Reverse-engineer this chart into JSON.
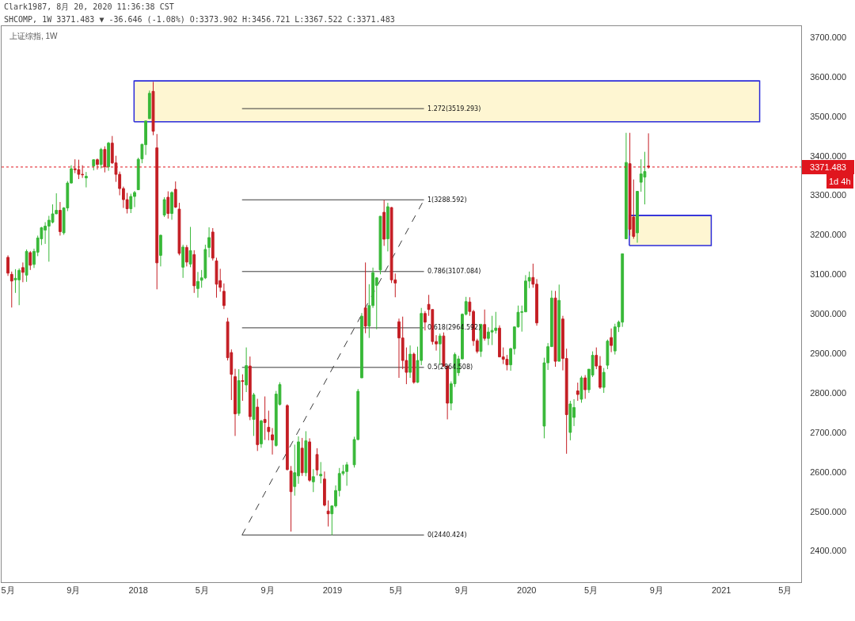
{
  "chart_data": {
    "type": "candlestick",
    "title": "Clark1987, 8月 20, 2020 11:36:38 CST",
    "subtitle": "SHCOMP, 1W 3371.483 ▼ -36.646 (-1.08%) O:3373.902 H:3456.721 L:3367.522 C:3371.483",
    "annotations": [
      "上证综指, 1W",
      "1d 4h"
    ],
    "x": [
      "2017-05-01",
      "2017-05-08",
      "2017-05-15",
      "2017-05-22",
      "2017-05-29",
      "2017-06-05",
      "2017-06-12",
      "2017-06-19",
      "2017-06-26",
      "2017-07-03",
      "2017-07-10",
      "2017-07-17",
      "2017-07-24",
      "2017-07-31",
      "2017-08-07",
      "2017-08-14",
      "2017-08-21",
      "2017-08-28",
      "2017-09-04",
      "2017-09-11",
      "2017-09-18",
      "2017-09-25",
      "2017-10-09",
      "2017-10-16",
      "2017-10-23",
      "2017-10-30",
      "2017-11-06",
      "2017-11-13",
      "2017-11-20",
      "2017-11-27",
      "2017-12-04",
      "2017-12-11",
      "2017-12-18",
      "2017-12-25",
      "2018-01-01",
      "2018-01-08",
      "2018-01-15",
      "2018-01-22",
      "2018-01-29",
      "2018-02-05",
      "2018-02-12",
      "2018-02-19",
      "2018-02-26",
      "2018-03-05",
      "2018-03-12",
      "2018-03-19",
      "2018-03-26",
      "2018-04-02",
      "2018-04-09",
      "2018-04-16",
      "2018-04-23",
      "2018-04-30",
      "2018-05-07",
      "2018-05-14",
      "2018-05-21",
      "2018-05-28",
      "2018-06-04",
      "2018-06-11",
      "2018-06-18",
      "2018-06-25",
      "2018-07-02",
      "2018-07-09",
      "2018-07-16",
      "2018-07-23",
      "2018-07-30",
      "2018-08-06",
      "2018-08-13",
      "2018-08-20",
      "2018-08-27",
      "2018-09-03",
      "2018-09-10",
      "2018-09-17",
      "2018-09-24",
      "2018-10-08",
      "2018-10-15",
      "2018-10-22",
      "2018-10-29",
      "2018-11-05",
      "2018-11-12",
      "2018-11-19",
      "2018-11-26",
      "2018-12-03",
      "2018-12-10",
      "2018-12-17",
      "2018-12-24",
      "2018-12-31",
      "2019-01-07",
      "2019-01-14",
      "2019-01-21",
      "2019-01-28",
      "2019-02-11",
      "2019-02-18",
      "2019-02-25",
      "2019-03-04",
      "2019-03-11",
      "2019-03-18",
      "2019-03-25",
      "2019-04-01",
      "2019-04-08",
      "2019-04-15",
      "2019-04-22",
      "2019-04-29",
      "2019-05-06",
      "2019-05-13",
      "2019-05-20",
      "2019-05-27",
      "2019-06-03",
      "2019-06-10",
      "2019-06-17",
      "2019-06-24",
      "2019-07-01",
      "2019-07-08",
      "2019-07-15",
      "2019-07-22",
      "2019-07-29",
      "2019-08-05",
      "2019-08-12",
      "2019-08-19",
      "2019-08-26",
      "2019-09-02",
      "2019-09-09",
      "2019-09-16",
      "2019-09-23",
      "2019-09-30",
      "2019-10-07",
      "2019-10-14",
      "2019-10-21",
      "2019-10-28",
      "2019-11-04",
      "2019-11-11",
      "2019-11-18",
      "2019-11-25",
      "2019-12-02",
      "2019-12-09",
      "2019-12-16",
      "2019-12-23",
      "2019-12-30",
      "2020-01-06",
      "2020-01-13",
      "2020-01-20",
      "2020-02-03",
      "2020-02-10",
      "2020-02-17",
      "2020-02-24",
      "2020-03-02",
      "2020-03-09",
      "2020-03-16",
      "2020-03-23",
      "2020-03-30",
      "2020-04-06",
      "2020-04-13",
      "2020-04-20",
      "2020-04-27",
      "2020-05-04",
      "2020-05-11",
      "2020-05-18",
      "2020-05-25",
      "2020-06-01",
      "2020-06-08",
      "2020-06-15",
      "2020-06-22",
      "2020-06-29",
      "2020-07-06",
      "2020-07-13",
      "2020-07-20",
      "2020-07-27",
      "2020-08-03",
      "2020-08-10",
      "2020-08-17"
    ],
    "ohlc": [
      [
        3143,
        3148,
        3096,
        3103
      ],
      [
        3100,
        3107,
        3016,
        3083
      ],
      [
        3086,
        3113,
        3053,
        3090
      ],
      [
        3086,
        3115,
        3022,
        3110
      ],
      [
        3117,
        3130,
        3080,
        3105
      ],
      [
        3098,
        3163,
        3081,
        3158
      ],
      [
        3155,
        3159,
        3111,
        3123
      ],
      [
        3125,
        3165,
        3116,
        3158
      ],
      [
        3156,
        3198,
        3146,
        3192
      ],
      [
        3190,
        3220,
        3174,
        3218
      ],
      [
        3212,
        3232,
        3177,
        3222
      ],
      [
        3222,
        3248,
        3132,
        3237
      ],
      [
        3232,
        3277,
        3229,
        3253
      ],
      [
        3253,
        3305,
        3253,
        3262
      ],
      [
        3262,
        3283,
        3198,
        3208
      ],
      [
        3205,
        3270,
        3200,
        3268
      ],
      [
        3268,
        3336,
        3260,
        3331
      ],
      [
        3331,
        3376,
        3330,
        3367
      ],
      [
        3367,
        3391,
        3356,
        3365
      ],
      [
        3365,
        3390,
        3341,
        3353
      ],
      [
        3353,
        3376,
        3344,
        3352
      ],
      [
        3344,
        3359,
        3320,
        3348
      ],
      [
        3374,
        3391,
        3363,
        3390
      ],
      [
        3390,
        3393,
        3365,
        3378
      ],
      [
        3378,
        3420,
        3368,
        3416
      ],
      [
        3416,
        3424,
        3358,
        3372
      ],
      [
        3372,
        3435,
        3362,
        3432
      ],
      [
        3432,
        3450,
        3379,
        3382
      ],
      [
        3382,
        3400,
        3334,
        3353
      ],
      [
        3353,
        3360,
        3300,
        3317
      ],
      [
        3317,
        3322,
        3268,
        3289
      ],
      [
        3289,
        3306,
        3254,
        3266
      ],
      [
        3266,
        3304,
        3255,
        3297
      ],
      [
        3297,
        3311,
        3270,
        3307
      ],
      [
        3314,
        3395,
        3314,
        3391
      ],
      [
        3392,
        3430,
        3381,
        3429
      ],
      [
        3428,
        3488,
        3402,
        3488
      ],
      [
        3494,
        3565,
        3493,
        3558
      ],
      [
        3563,
        3587,
        3452,
        3462
      ],
      [
        3420,
        3455,
        3062,
        3129
      ],
      [
        3148,
        3200,
        3120,
        3199
      ],
      [
        3250,
        3295,
        3245,
        3289
      ],
      [
        3295,
        3310,
        3241,
        3254
      ],
      [
        3254,
        3310,
        3238,
        3307
      ],
      [
        3315,
        3335,
        3268,
        3270
      ],
      [
        3265,
        3281,
        3148,
        3153
      ],
      [
        3118,
        3175,
        3091,
        3169
      ],
      [
        3168,
        3174,
        3120,
        3131
      ],
      [
        3126,
        3220,
        3118,
        3160
      ],
      [
        3150,
        3161,
        3053,
        3071
      ],
      [
        3064,
        3106,
        3041,
        3082
      ],
      [
        3085,
        3111,
        3066,
        3091
      ],
      [
        3091,
        3175,
        3088,
        3163
      ],
      [
        3168,
        3219,
        3143,
        3193
      ],
      [
        3207,
        3217,
        3135,
        3141
      ],
      [
        3134,
        3142,
        3041,
        3075
      ],
      [
        3084,
        3114,
        3056,
        3067
      ],
      [
        3057,
        3077,
        3012,
        3021
      ],
      [
        2980,
        2990,
        2882,
        2889
      ],
      [
        2902,
        2910,
        2782,
        2847
      ],
      [
        2841,
        2861,
        2691,
        2747
      ],
      [
        2748,
        2860,
        2742,
        2831
      ],
      [
        2831,
        2847,
        2780,
        2829
      ],
      [
        2820,
        2915,
        2802,
        2869
      ],
      [
        2868,
        2892,
        2731,
        2740
      ],
      [
        2733,
        2800,
        2691,
        2795
      ],
      [
        2764,
        2785,
        2653,
        2669
      ],
      [
        2671,
        2732,
        2661,
        2729
      ],
      [
        2733,
        2791,
        2681,
        2725
      ],
      [
        2713,
        2755,
        2680,
        2702
      ],
      [
        2694,
        2711,
        2644,
        2681
      ],
      [
        2667,
        2805,
        2664,
        2797
      ],
      [
        2771,
        2827,
        2768,
        2821
      ],
      [
        2768,
        2771,
        2604,
        2606
      ],
      [
        2602,
        2615,
        2449,
        2550
      ],
      [
        2563,
        2669,
        2540,
        2598
      ],
      [
        2590,
        2690,
        2570,
        2676
      ],
      [
        2660,
        2686,
        2590,
        2598
      ],
      [
        2598,
        2703,
        2589,
        2679
      ],
      [
        2676,
        2685,
        2575,
        2579
      ],
      [
        2575,
        2607,
        2549,
        2588
      ],
      [
        2644,
        2660,
        2591,
        2605
      ],
      [
        2590,
        2625,
        2571,
        2594
      ],
      [
        2582,
        2601,
        2513,
        2516
      ],
      [
        2501,
        2528,
        2462,
        2494
      ],
      [
        2494,
        2515,
        2440,
        2514
      ],
      [
        2514,
        2566,
        2510,
        2553
      ],
      [
        2553,
        2610,
        2538,
        2596
      ],
      [
        2596,
        2618,
        2591,
        2601
      ],
      [
        2601,
        2625,
        2565,
        2618
      ],
      [
        2618,
        2689,
        2611,
        2682
      ],
      [
        2682,
        2810,
        2680,
        2804
      ],
      [
        2838,
        3002,
        2838,
        2994
      ],
      [
        3015,
        3130,
        2951,
        2969
      ],
      [
        2969,
        3075,
        2939,
        3021
      ],
      [
        3021,
        3117,
        3015,
        3104
      ],
      [
        3072,
        3093,
        2961,
        3091
      ],
      [
        3111,
        3247,
        3100,
        3247
      ],
      [
        3257,
        3288,
        3172,
        3189
      ],
      [
        3190,
        3281,
        3158,
        3271
      ],
      [
        3269,
        3270,
        3078,
        3086
      ],
      [
        3086,
        3102,
        3042,
        3078
      ],
      [
        2980,
        2988,
        2838,
        2939
      ],
      [
        2939,
        2993,
        2860,
        2882
      ],
      [
        2882,
        2915,
        2822,
        2852
      ],
      [
        2852,
        2920,
        2838,
        2898
      ],
      [
        2898,
        2902,
        2823,
        2827
      ],
      [
        2827,
        2917,
        2825,
        2882
      ],
      [
        2882,
        3015,
        2870,
        3001
      ],
      [
        3001,
        3007,
        2958,
        2979
      ],
      [
        3024,
        3048,
        2995,
        3011
      ],
      [
        3011,
        3011,
        2922,
        2930
      ],
      [
        2930,
        2946,
        2907,
        2924
      ],
      [
        2924,
        2950,
        2871,
        2944
      ],
      [
        2944,
        2953,
        2866,
        2868
      ],
      [
        2868,
        2868,
        2733,
        2774
      ],
      [
        2774,
        2829,
        2756,
        2823
      ],
      [
        2823,
        2902,
        2815,
        2897
      ],
      [
        2851,
        2894,
        2843,
        2886
      ],
      [
        2886,
        3001,
        2885,
        2999
      ],
      [
        2999,
        3043,
        2996,
        3031
      ],
      [
        3030,
        3042,
        2995,
        3006
      ],
      [
        3006,
        3010,
        2919,
        2932
      ],
      [
        2932,
        2937,
        2900,
        2905
      ],
      [
        2905,
        2975,
        2891,
        2973
      ],
      [
        2973,
        3011,
        2932,
        2938
      ],
      [
        2938,
        2966,
        2921,
        2954
      ],
      [
        2954,
        2995,
        2921,
        2958
      ],
      [
        2958,
        3005,
        2950,
        2964
      ],
      [
        2964,
        2971,
        2891,
        2891
      ],
      [
        2891,
        2915,
        2873,
        2885
      ],
      [
        2885,
        2896,
        2857,
        2871
      ],
      [
        2871,
        2914,
        2856,
        2912
      ],
      [
        2912,
        2968,
        2897,
        2967
      ],
      [
        2967,
        3021,
        2965,
        3004
      ],
      [
        3004,
        3021,
        2955,
        3005
      ],
      [
        3005,
        3098,
        3005,
        3083
      ],
      [
        3083,
        3107,
        3065,
        3092
      ],
      [
        3092,
        3127,
        3066,
        3075
      ],
      [
        3075,
        3088,
        2970,
        2977
      ],
      [
        2716,
        2889,
        2685,
        2876
      ],
      [
        2876,
        2926,
        2858,
        2917
      ],
      [
        2917,
        3059,
        2917,
        3040
      ],
      [
        3040,
        3058,
        2866,
        2880
      ],
      [
        2880,
        3074,
        2880,
        3034
      ],
      [
        2987,
        2995,
        2857,
        2887
      ],
      [
        2887,
        2912,
        2646,
        2745
      ],
      [
        2700,
        2780,
        2680,
        2772
      ],
      [
        2738,
        2784,
        2716,
        2763
      ],
      [
        2805,
        2826,
        2780,
        2796
      ],
      [
        2784,
        2843,
        2775,
        2838
      ],
      [
        2838,
        2845,
        2785,
        2808
      ],
      [
        2808,
        2860,
        2800,
        2860
      ],
      [
        2845,
        2905,
        2840,
        2895
      ],
      [
        2895,
        2915,
        2860,
        2868
      ],
      [
        2868,
        2893,
        2810,
        2814
      ],
      [
        2814,
        2863,
        2800,
        2852
      ],
      [
        2870,
        2935,
        2860,
        2931
      ],
      [
        2940,
        2963,
        2903,
        2920
      ],
      [
        2906,
        2975,
        2897,
        2967
      ],
      [
        2967,
        2983,
        2954,
        2979
      ],
      [
        2979,
        3152,
        2967,
        3152
      ],
      [
        3190,
        3458,
        3190,
        3383
      ],
      [
        3380,
        3458,
        3198,
        3214
      ],
      [
        3245,
        3340,
        3190,
        3196
      ],
      [
        3205,
        3311,
        3180,
        3310
      ],
      [
        3333,
        3391,
        3309,
        3354
      ],
      [
        3346,
        3410,
        3277,
        3360
      ],
      [
        3373.902,
        3456.721,
        3367.522,
        3371.483
      ]
    ],
    "colors": [
      "#c41e24",
      "#c41e24",
      "#38b838",
      "#38b838",
      "#c41e24",
      "#38b838",
      "#c41e24",
      "#38b838",
      "#38b838",
      "#38b838",
      "#38b838",
      "#38b838",
      "#38b838",
      "#38b838",
      "#c41e24",
      "#38b838",
      "#38b838",
      "#38b838",
      "#c41e24",
      "#c41e24",
      "#c41e24",
      "#38b838",
      "#38b838",
      "#c41e24",
      "#38b838",
      "#c41e24",
      "#38b838",
      "#c41e24",
      "#c41e24",
      "#c41e24",
      "#c41e24",
      "#c41e24",
      "#38b838",
      "#38b838",
      "#38b838",
      "#38b838",
      "#38b838",
      "#38b838",
      "#c41e24",
      "#c41e24",
      "#38b838",
      "#38b838",
      "#c41e24",
      "#38b838",
      "#c41e24",
      "#c41e24",
      "#38b838",
      "#c41e24",
      "#38b838",
      "#c41e24",
      "#38b838",
      "#38b838",
      "#38b838",
      "#38b838",
      "#c41e24",
      "#c41e24",
      "#c41e24",
      "#c41e24",
      "#c41e24",
      "#c41e24",
      "#c41e24",
      "#38b838",
      "#c41e24",
      "#38b838",
      "#c41e24",
      "#38b838",
      "#c41e24",
      "#38b838",
      "#c41e24",
      "#c41e24",
      "#c41e24",
      "#38b838",
      "#38b838",
      "#c41e24",
      "#c41e24",
      "#38b838",
      "#38b838",
      "#c41e24",
      "#38b838",
      "#c41e24",
      "#38b838",
      "#c41e24",
      "#38b838",
      "#c41e24",
      "#c41e24",
      "#38b838",
      "#38b838",
      "#38b838",
      "#38b838",
      "#38b838",
      "#38b838",
      "#38b838",
      "#38b838",
      "#c41e24",
      "#38b838",
      "#38b838",
      "#38b838",
      "#38b838",
      "#c41e24",
      "#38b838",
      "#c41e24",
      "#c41e24",
      "#c41e24",
      "#c41e24",
      "#c41e24",
      "#38b838",
      "#c41e24",
      "#38b838",
      "#38b838",
      "#c41e24",
      "#c41e24",
      "#c41e24",
      "#c41e24",
      "#38b838",
      "#c41e24",
      "#c41e24",
      "#38b838",
      "#38b838",
      "#38b838",
      "#38b838",
      "#38b838",
      "#c41e24",
      "#c41e24",
      "#c41e24",
      "#38b838",
      "#c41e24",
      "#38b838",
      "#38b838",
      "#38b838",
      "#c41e24",
      "#c41e24",
      "#c41e24",
      "#38b838",
      "#38b838",
      "#38b838",
      "#38b838",
      "#38b838",
      "#38b838",
      "#c41e24",
      "#c41e24",
      "#38b838",
      "#38b838",
      "#38b838",
      "#c41e24",
      "#38b838",
      "#c41e24",
      "#c41e24",
      "#38b838",
      "#38b838",
      "#c41e24",
      "#38b838",
      "#c41e24",
      "#38b838",
      "#38b838",
      "#c41e24",
      "#c41e24",
      "#38b838",
      "#38b838",
      "#c41e24",
      "#38b838",
      "#38b838",
      "#38b838",
      "#38b838",
      "#c41e24",
      "#c41e24",
      "#38b838",
      "#38b838",
      "#38b838",
      "#c41e24"
    ],
    "xlim": [
      "2017-04-19",
      "2021-05-31"
    ],
    "xticks": [
      {
        "value": "2017-05-01",
        "label": "5月"
      },
      {
        "value": "2017-09-01",
        "label": "9月"
      },
      {
        "value": "2018-01-01",
        "label": "2018"
      },
      {
        "value": "2018-05-01",
        "label": "5月"
      },
      {
        "value": "2018-09-01",
        "label": "9月"
      },
      {
        "value": "2019-01-01",
        "label": "2019"
      },
      {
        "value": "2019-05-01",
        "label": "5月"
      },
      {
        "value": "2019-09-01",
        "label": "9月"
      },
      {
        "value": "2020-01-01",
        "label": "2020"
      },
      {
        "value": "2020-05-01",
        "label": "5月"
      },
      {
        "value": "2020-09-01",
        "label": "9月"
      },
      {
        "value": "2021-01-01",
        "label": "2021"
      },
      {
        "value": "2021-05-01",
        "label": "5月"
      }
    ],
    "ylim": [
      2321,
      3728
    ],
    "yticks": [
      {
        "value": 2400,
        "label": "2400.000"
      },
      {
        "value": 2500,
        "label": "2500.000"
      },
      {
        "value": 2600,
        "label": "2600.000"
      },
      {
        "value": 2700,
        "label": "2700.000"
      },
      {
        "value": 2800,
        "label": "2800.000"
      },
      {
        "value": 2900,
        "label": "2900.000"
      },
      {
        "value": 3000,
        "label": "3000.000"
      },
      {
        "value": 3100,
        "label": "3100.000"
      },
      {
        "value": 3200,
        "label": "3200.000"
      },
      {
        "value": 3300,
        "label": "3300.000"
      },
      {
        "value": 3400,
        "label": "3400.000"
      },
      {
        "value": 3500,
        "label": "3500.000"
      },
      {
        "value": 3600,
        "label": "3600.000"
      },
      {
        "value": 3700,
        "label": "3700.000"
      }
    ],
    "grid": false,
    "series": [
      {
        "type": "line",
        "x": [
          "2017-12-24",
          "2021-03-14"
        ],
        "values": [
          3589,
          3589
        ],
        "lower": [
          3486,
          3486
        ],
        "upper": [
          3589,
          3589
        ],
        "color": "#2b2bd9"
      },
      {
        "type": "line",
        "x": [
          "2020-07-12",
          "2020-12-13"
        ],
        "values": [
          3249,
          3249
        ],
        "lower": [
          3173,
          3173
        ],
        "upper": [
          3249,
          3249
        ],
        "color": "#2b2bd9"
      },
      {
        "type": "line",
        "name": "1.272(3519.293)",
        "x": [
          "2018-07-15",
          "2019-06-22"
        ],
        "values": [
          3519.293,
          3519.293
        ],
        "color": "#3a3a3a"
      },
      {
        "type": "line",
        "name": "1(3288.592)",
        "x": [
          "2018-07-15",
          "2019-06-22"
        ],
        "values": [
          3288.592,
          3288.592
        ],
        "color": "#3a3a3a"
      },
      {
        "type": "line",
        "name": "0.786(3107.084)",
        "x": [
          "2018-07-15",
          "2019-06-22"
        ],
        "values": [
          3107.084,
          3107.084
        ],
        "color": "#3a3a3a"
      },
      {
        "type": "line",
        "name": "0.618(2964.592)",
        "x": [
          "2018-07-15",
          "2019-06-22"
        ],
        "values": [
          2964.592,
          2964.592
        ],
        "color": "#3a3a3a"
      },
      {
        "type": "line",
        "name": "0.5(2864.508)",
        "x": [
          "2018-07-15",
          "2019-06-22"
        ],
        "values": [
          2864.508,
          2864.508
        ],
        "color": "#3a3a3a"
      },
      {
        "type": "line",
        "name": "0(2440.424)",
        "x": [
          "2018-07-15",
          "2019-06-22"
        ],
        "values": [
          2440.424,
          2440.424
        ],
        "color": "#3a3a3a"
      },
      {
        "type": "line",
        "x": [
          "2018-07-15",
          "2019-06-22"
        ],
        "values": [
          2440.424,
          3288.592
        ],
        "color": "#3a3a3a",
        "line_style": "dashed"
      }
    ],
    "ref_lines": [
      {
        "axis": "y",
        "value": 3371.483,
        "label": "3371.483",
        "color": "#e0161e",
        "line_style": "dotted"
      }
    ]
  }
}
